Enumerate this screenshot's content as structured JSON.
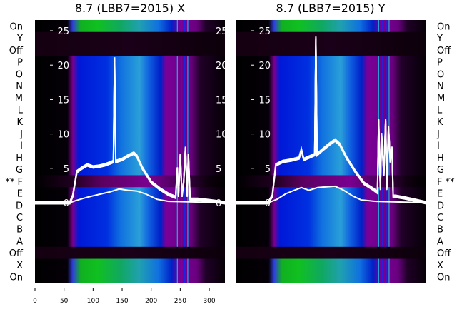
{
  "chart_data": [
    {
      "type": "heatmap",
      "title": "8.7 (LBB7=2015) X",
      "row_labels": [
        "On",
        "Y",
        "Off",
        "P",
        "O",
        "N",
        "M",
        "L",
        "K",
        "J",
        "I",
        "H",
        "G",
        "** F",
        "E",
        "D",
        "C",
        "B",
        "A",
        "Off",
        "X",
        "On"
      ],
      "row_kinds": [
        "green",
        "dark",
        "dark",
        "blue",
        "blue",
        "blue",
        "blue",
        "blue",
        "blue",
        "blue",
        "blue",
        "blue",
        "blue",
        "purple",
        "blue",
        "blue",
        "blue",
        "blue",
        "blue",
        "dark",
        "green",
        "green"
      ],
      "xlim": [
        0,
        327
      ],
      "xticks": [
        "0",
        "50",
        "100",
        "150",
        "200",
        "250",
        "300"
      ],
      "ylim": [
        -11.6,
        26.5
      ],
      "yticks": [
        "0",
        "5",
        "10",
        "15",
        "20",
        "25"
      ],
      "series": [
        {
          "name": "upper",
          "points": [
            [
              0,
              0
            ],
            [
              60,
              0
            ],
            [
              65,
              1
            ],
            [
              72,
              4.5
            ],
            [
              80,
              5
            ],
            [
              90,
              5.5
            ],
            [
              100,
              5.2
            ],
            [
              110,
              5.3
            ],
            [
              120,
              5.5
            ],
            [
              130,
              5.8
            ],
            [
              135,
              6
            ],
            [
              137,
              21
            ],
            [
              139,
              6
            ],
            [
              150,
              6.3
            ],
            [
              160,
              6.8
            ],
            [
              170,
              7.2
            ],
            [
              175,
              6.8
            ],
            [
              185,
              5
            ],
            [
              200,
              3
            ],
            [
              215,
              2
            ],
            [
              230,
              1.2
            ],
            [
              242,
              0.8
            ],
            [
              245,
              5
            ],
            [
              247,
              1
            ],
            [
              250,
              7
            ],
            [
              253,
              1
            ],
            [
              256,
              3
            ],
            [
              259,
              8
            ],
            [
              262,
              1
            ],
            [
              264,
              7
            ],
            [
              267,
              0.5
            ],
            [
              280,
              0.5
            ],
            [
              300,
              0.3
            ],
            [
              327,
              0
            ]
          ]
        },
        {
          "name": "lower",
          "points": [
            [
              0,
              0
            ],
            [
              60,
              0
            ],
            [
              70,
              0.3
            ],
            [
              90,
              0.8
            ],
            [
              110,
              1.2
            ],
            [
              130,
              1.6
            ],
            [
              145,
              2
            ],
            [
              160,
              1.8
            ],
            [
              175,
              1.7
            ],
            [
              190,
              1.3
            ],
            [
              210,
              0.5
            ],
            [
              230,
              0.2
            ],
            [
              327,
              0
            ]
          ]
        }
      ]
    },
    {
      "type": "heatmap",
      "title": "8.7 (LBB7=2015) Y",
      "row_labels": [
        "On",
        "Y",
        "Off",
        "P",
        "O",
        "N",
        "M",
        "L",
        "K",
        "J",
        "I",
        "H",
        "G",
        "F **",
        "E",
        "D",
        "C",
        "B",
        "A",
        "Off",
        "X",
        "On"
      ],
      "row_kinds": [
        "green",
        "dark",
        "dark",
        "blue",
        "blue",
        "blue",
        "blue",
        "blue",
        "blue",
        "blue",
        "blue",
        "blue",
        "blue",
        "purple",
        "blue",
        "blue",
        "blue",
        "blue",
        "blue",
        "dark",
        "green",
        "green"
      ],
      "xlim": [
        0,
        327
      ],
      "ylim": [
        -11.6,
        26.5
      ],
      "yticks": [
        "0",
        "5",
        "10",
        "15",
        "20",
        "25"
      ],
      "series": [
        {
          "name": "upper",
          "points": [
            [
              0,
              0
            ],
            [
              55,
              0
            ],
            [
              62,
              1
            ],
            [
              68,
              5.5
            ],
            [
              80,
              6
            ],
            [
              95,
              6.2
            ],
            [
              108,
              6.5
            ],
            [
              112,
              7.7
            ],
            [
              116,
              6.3
            ],
            [
              130,
              6.8
            ],
            [
              135,
              7
            ],
            [
              137,
              24
            ],
            [
              139,
              7
            ],
            [
              150,
              7.8
            ],
            [
              160,
              8.5
            ],
            [
              170,
              9.1
            ],
            [
              178,
              8.5
            ],
            [
              190,
              6.5
            ],
            [
              205,
              4.5
            ],
            [
              220,
              2.8
            ],
            [
              235,
              2
            ],
            [
              243,
              1.5
            ],
            [
              245,
              12
            ],
            [
              248,
              2
            ],
            [
              250,
              10
            ],
            [
              254,
              4
            ],
            [
              257,
              12
            ],
            [
              259,
              2
            ],
            [
              262,
              11
            ],
            [
              265,
              6
            ],
            [
              268,
              8
            ],
            [
              270,
              1
            ],
            [
              290,
              0.7
            ],
            [
              327,
              0
            ]
          ]
        },
        {
          "name": "lower",
          "points": [
            [
              0,
              0
            ],
            [
              55,
              0
            ],
            [
              70,
              0.5
            ],
            [
              85,
              1.3
            ],
            [
              100,
              1.8
            ],
            [
              112,
              2.2
            ],
            [
              125,
              1.8
            ],
            [
              140,
              2.2
            ],
            [
              155,
              2.3
            ],
            [
              170,
              2.4
            ],
            [
              185,
              1.8
            ],
            [
              200,
              1
            ],
            [
              215,
              0.4
            ],
            [
              240,
              0.2
            ],
            [
              327,
              0
            ]
          ]
        }
      ]
    }
  ]
}
